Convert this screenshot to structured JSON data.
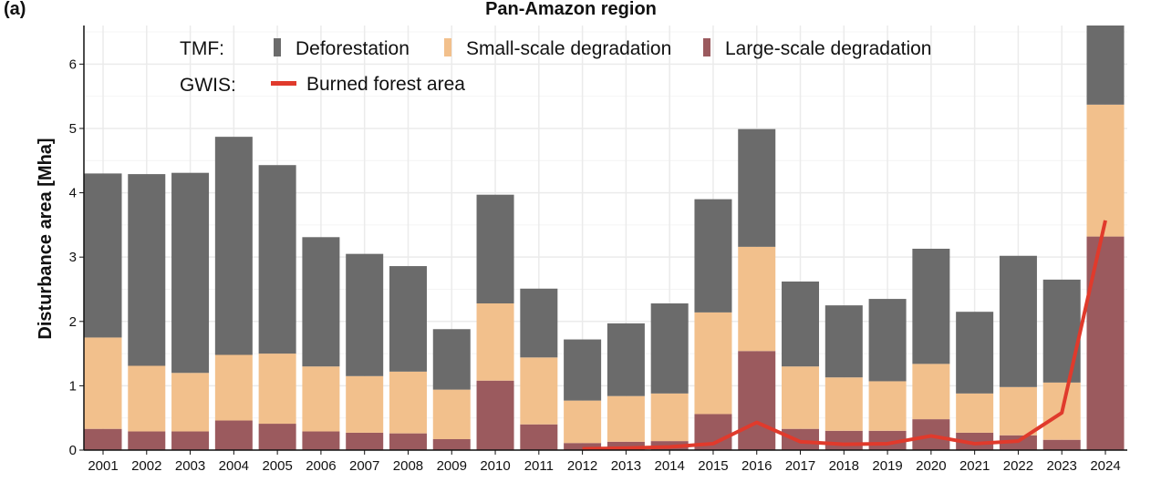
{
  "panel_label": "(a)",
  "chart_data": {
    "type": "bar",
    "stacked": true,
    "title": "Pan-Amazon region",
    "xlabel": "",
    "ylabel": "Disturbance area [Mha]",
    "ylim": [
      0,
      6.6
    ],
    "yticks": [
      0,
      1,
      2,
      3,
      4,
      5,
      6
    ],
    "grid": true,
    "legend_position": "top-left",
    "categories": [
      "2001",
      "2002",
      "2003",
      "2004",
      "2005",
      "2006",
      "2007",
      "2008",
      "2009",
      "2010",
      "2011",
      "2012",
      "2013",
      "2014",
      "2015",
      "2016",
      "2017",
      "2018",
      "2019",
      "2020",
      "2021",
      "2022",
      "2023",
      "2024"
    ],
    "legend_groups": [
      {
        "label": "TMF:",
        "entries": [
          "Large-scale degradation"
        ]
      },
      {
        "label": "GWIS:",
        "entries": [
          "Burned forest area"
        ]
      }
    ],
    "series": [
      {
        "name": "Large-scale degradation",
        "group": "TMF",
        "color": "#9b5a5e",
        "values": [
          0.33,
          0.29,
          0.29,
          0.46,
          0.41,
          0.29,
          0.27,
          0.26,
          0.17,
          1.08,
          0.4,
          0.11,
          0.13,
          0.14,
          0.56,
          1.54,
          0.33,
          0.3,
          0.3,
          0.48,
          0.27,
          0.23,
          0.16,
          3.32
        ]
      },
      {
        "name": "Small-scale degradation",
        "group": "TMF",
        "color": "#f2c08c",
        "values": [
          1.42,
          1.02,
          0.91,
          1.02,
          1.09,
          1.01,
          0.88,
          0.96,
          0.77,
          1.2,
          1.04,
          0.66,
          0.71,
          0.74,
          1.58,
          1.62,
          0.97,
          0.83,
          0.77,
          0.86,
          0.61,
          0.75,
          0.89,
          2.05
        ]
      },
      {
        "name": "Deforestation",
        "group": "TMF",
        "color": "#6b6b6b",
        "values": [
          2.55,
          2.98,
          3.11,
          3.39,
          2.93,
          2.01,
          1.9,
          1.64,
          0.94,
          1.69,
          1.07,
          0.95,
          1.13,
          1.4,
          1.76,
          1.83,
          1.32,
          1.12,
          1.28,
          1.79,
          1.27,
          2.04,
          1.6,
          1.3
        ]
      },
      {
        "name": "Burned forest area",
        "group": "GWIS",
        "type": "line",
        "color": "#e03a2c",
        "x": [
          "2012",
          "2013",
          "2014",
          "2015",
          "2016",
          "2017",
          "2018",
          "2019",
          "2020",
          "2021",
          "2022",
          "2023",
          "2024"
        ],
        "values": [
          0.02,
          0.03,
          0.05,
          0.1,
          0.43,
          0.13,
          0.09,
          0.1,
          0.22,
          0.1,
          0.14,
          0.58,
          3.57
        ]
      }
    ]
  }
}
